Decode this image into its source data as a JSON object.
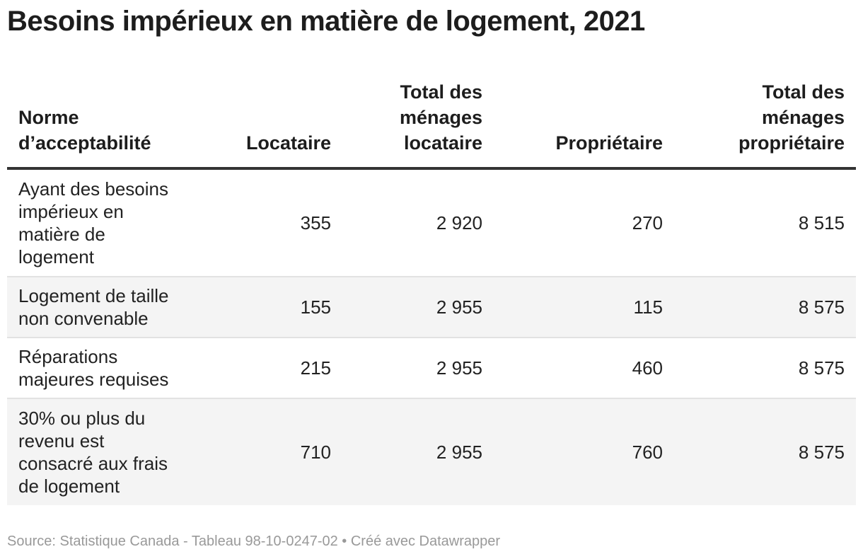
{
  "chart_data": {
    "type": "table",
    "title": "Besoins impérieux en matière de logement, 2021",
    "columns": [
      "Norme d’acceptabilité",
      "Locataire",
      "Total des ménages locataire",
      "Propriétaire",
      "Total des ménages propriétaire"
    ],
    "rows": [
      [
        "Ayant des besoins impérieux en matière de logement",
        "355",
        "2 920",
        "270",
        "8 515"
      ],
      [
        "Logement de taille non convenable",
        "155",
        "2 955",
        "115",
        "8 575"
      ],
      [
        "Réparations majeures requises",
        "215",
        "2 955",
        "460",
        "8 575"
      ],
      [
        "30% ou plus du revenu est consacré aux frais de logement",
        "710",
        "2 955",
        "760",
        "8 575"
      ]
    ],
    "footer": "Source: Statistique Canada - Tableau 98-10-0247-02 • Créé avec Datawrapper"
  }
}
